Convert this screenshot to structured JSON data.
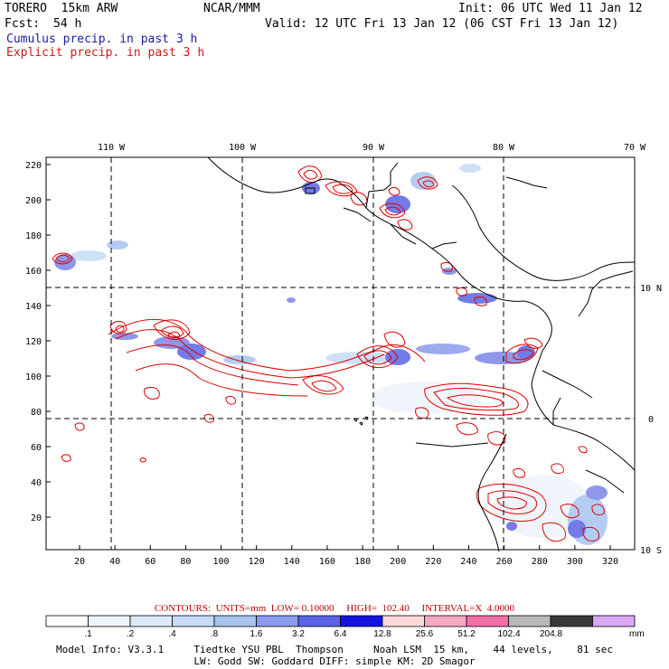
{
  "header": {
    "title": "TORERO  15km ARW",
    "org": "NCAR/MMM",
    "init": "Init: 06 UTC Wed 11 Jan 12",
    "fcst_label": "Fcst:",
    "fcst_value": "54 h",
    "valid": "Valid: 12 UTC Fri 13 Jan 12 (06 CST Fri 13 Jan 12)",
    "line_cumulus": "Cumulus precip. in past 3 h",
    "line_explicit": "Explicit precip. in past 3 h"
  },
  "colors": {
    "cumulus": "#1a1aa8",
    "explicit": "#e00000",
    "background": "#ffffff"
  },
  "map": {
    "lon_labels": [
      "110 W",
      "100 W",
      "90 W",
      "80 W",
      "70 W"
    ],
    "lat_labels": [
      "10 N",
      "0",
      "10 S"
    ],
    "y_ticks": [
      "220",
      "200",
      "180",
      "160",
      "140",
      "120",
      "100",
      "80",
      "60",
      "40",
      "20"
    ],
    "x_ticks": [
      "20",
      "40",
      "60",
      "80",
      "100",
      "120",
      "140",
      "160",
      "180",
      "200",
      "220",
      "240",
      "260",
      "280",
      "300",
      "320"
    ],
    "grid": "dashed"
  },
  "contours": {
    "line": "CONTOURS:  UNITS=mm  LOW= 0.10000     HIGH=  102.40     INTERVAL=X  4.0000"
  },
  "colorbar": {
    "labels": [
      ".1",
      ".2",
      ".4",
      ".8",
      "1.6",
      "3.2",
      "6.4",
      "12.8",
      "25.6",
      "51.2",
      "102.4",
      "204.8"
    ],
    "units": "mm",
    "colors": [
      "#ffffff",
      "#eef4fb",
      "#dce9f8",
      "#c6dcf6",
      "#a8c4f0",
      "#8c9cec",
      "#5a64e4",
      "#1414e0",
      "#fbd9d9",
      "#f7a8c4",
      "#f070a8",
      "#b8b8b8",
      "#3a3a3a",
      "#d8a8f4"
    ]
  },
  "model_info": {
    "line1": "Model Info: V3.3.1     Tiedtke YSU PBL  Thompson     Noah LSM  15 km,    44 levels,    81 sec",
    "line2": "LW: Godd SW: Goddard DIFF: simple KM: 2D Smagor"
  }
}
